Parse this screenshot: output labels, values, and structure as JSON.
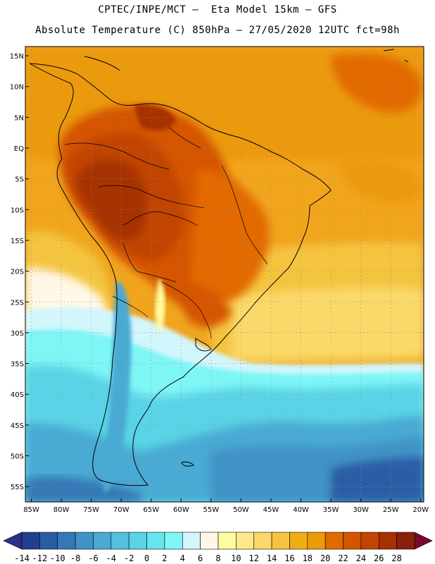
{
  "header": {
    "line1": "CPTEC/INPE/MCT –  Eta Model 15km – GFS",
    "line2": "Absolute Temperature (C) 850hPa – 27/05/2020 12UTC fct=98h"
  },
  "map": {
    "lat_labels": [
      "15N",
      "10N",
      "5N",
      "EQ",
      "5S",
      "10S",
      "15S",
      "20S",
      "25S",
      "30S",
      "35S",
      "40S",
      "45S",
      "50S",
      "55S"
    ],
    "lon_labels": [
      "85W",
      "80W",
      "75W",
      "70W",
      "65W",
      "60W",
      "55W",
      "50W",
      "45W",
      "40W",
      "35W",
      "30W",
      "25W",
      "20W"
    ],
    "lat_range": [
      16.5,
      -57.5
    ],
    "lon_range": [
      -86,
      -19.5
    ]
  },
  "colorbar": {
    "labels": [
      "-14",
      "-12",
      "-10",
      "-8",
      "-6",
      "-4",
      "-2",
      "0",
      "2",
      "4",
      "6",
      "8",
      "10",
      "12",
      "14",
      "16",
      "18",
      "20",
      "22",
      "24",
      "26",
      "28"
    ],
    "colors": [
      "#23408e",
      "#2a5da5",
      "#3478b6",
      "#3f93c7",
      "#4aaad3",
      "#52c0de",
      "#5ad3e6",
      "#66e5ee",
      "#7ff6f6",
      "#d2f6fb",
      "#fff8e6",
      "#fffca0",
      "#fde98a",
      "#fbd86a",
      "#f4c441",
      "#f0ae14",
      "#ec9a08",
      "#e26b00",
      "#d55400",
      "#c14400",
      "#a63100",
      "#8a1f0c"
    ]
  }
}
